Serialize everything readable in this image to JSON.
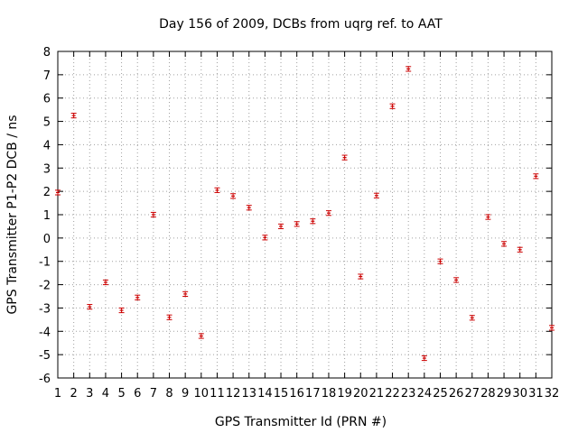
{
  "chart_data": {
    "type": "scatter",
    "title": "Day 156 of 2009, DCBs from uqrg ref. to AAT",
    "xlabel": "GPS Transmitter Id (PRN #)",
    "ylabel": "GPS Transmitter P1-P2 DCB / ns",
    "xlim": [
      1,
      32
    ],
    "ylim": [
      -6,
      8
    ],
    "grid": true,
    "x_ticks": [
      "1",
      "2",
      "3",
      "4",
      "5",
      "6",
      "7",
      "8",
      "9",
      "10",
      "11",
      "12",
      "13",
      "14",
      "15",
      "16",
      "17",
      "18",
      "19",
      "20",
      "21",
      "22",
      "23",
      "24",
      "25",
      "26",
      "27",
      "28",
      "29",
      "30",
      "31",
      "32"
    ],
    "y_ticks": [
      "-6",
      "-5",
      "-4",
      "-3",
      "-2",
      "-1",
      "0",
      "1",
      "2",
      "3",
      "4",
      "5",
      "6",
      "7",
      "8"
    ],
    "series": [
      {
        "name": "DCB",
        "color": "#cc0000",
        "x": [
          1,
          2,
          3,
          4,
          5,
          6,
          7,
          8,
          9,
          10,
          11,
          12,
          13,
          14,
          15,
          16,
          17,
          18,
          19,
          20,
          21,
          22,
          23,
          24,
          25,
          26,
          27,
          28,
          29,
          30,
          31,
          32
        ],
        "values": [
          1.95,
          5.25,
          -2.95,
          -1.9,
          -3.1,
          -2.55,
          1.0,
          -3.4,
          -2.4,
          -4.2,
          2.05,
          1.8,
          1.3,
          0.02,
          0.5,
          0.6,
          0.72,
          1.07,
          3.45,
          -1.65,
          1.82,
          5.65,
          7.25,
          -5.15,
          -1.0,
          -1.8,
          -3.42,
          0.9,
          -0.25,
          -0.5,
          2.65,
          -3.85
        ],
        "error": 0.1
      }
    ]
  }
}
